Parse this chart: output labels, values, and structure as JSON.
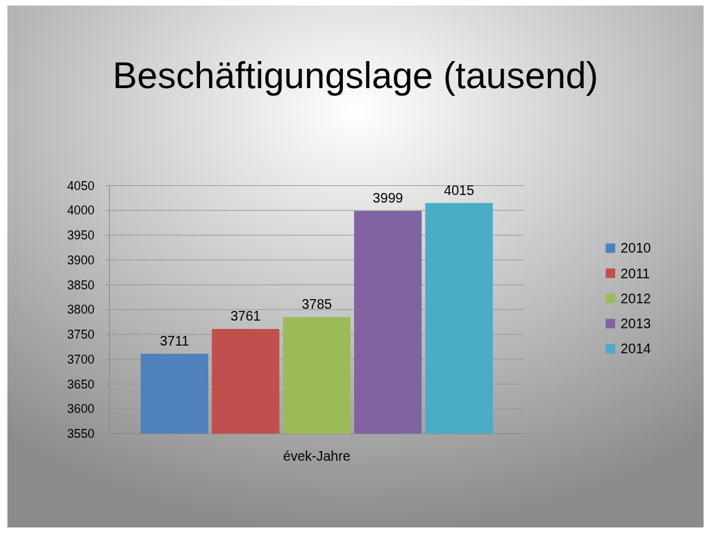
{
  "chart_data": {
    "type": "bar",
    "title": "Beschäftigungslage (tausend)",
    "categories": [
      "évek-Jahre"
    ],
    "series": [
      {
        "name": "2010",
        "color": "#4f81bd",
        "values": [
          3711
        ]
      },
      {
        "name": "2011",
        "color": "#c0504d",
        "values": [
          3761
        ]
      },
      {
        "name": "2012",
        "color": "#9bbb59",
        "values": [
          3785
        ]
      },
      {
        "name": "2013",
        "color": "#8064a2",
        "values": [
          3999
        ]
      },
      {
        "name": "2014",
        "color": "#4bacc6",
        "values": [
          4015
        ]
      }
    ],
    "ylim": [
      3550,
      4050
    ],
    "yticks": [
      3550,
      3600,
      3650,
      3700,
      3750,
      3800,
      3850,
      3900,
      3950,
      4000,
      4050
    ],
    "grid": true,
    "legend": "right",
    "data_labels": true
  }
}
